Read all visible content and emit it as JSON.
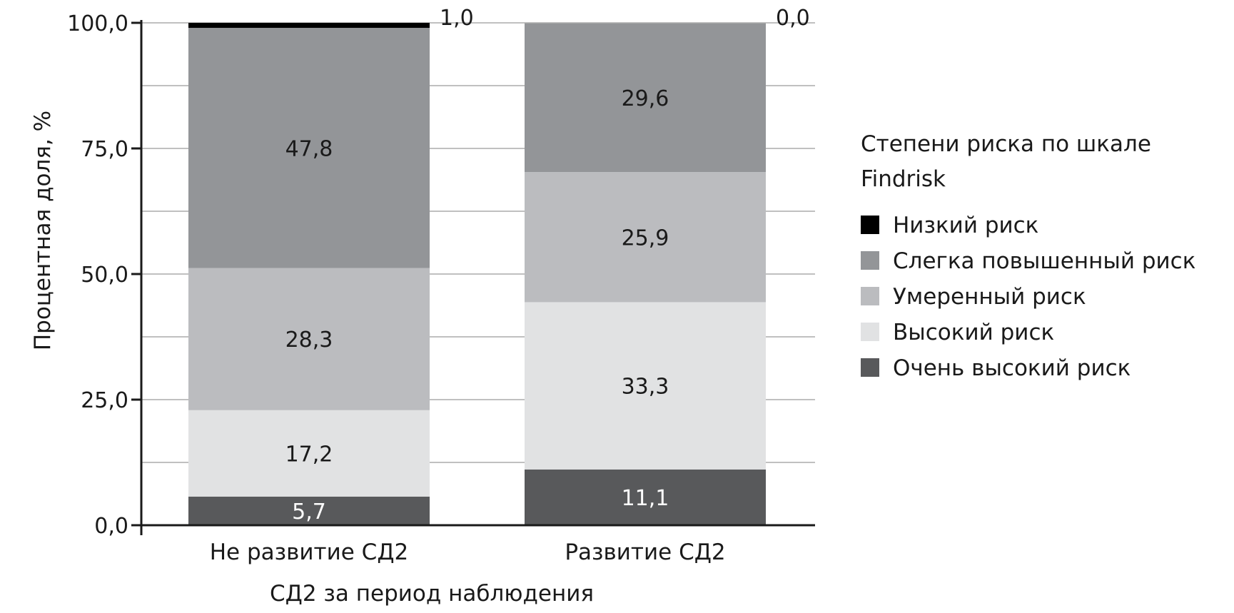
{
  "chart_data": {
    "type": "bar",
    "stacked": true,
    "categories": [
      "Не  развитие СД2",
      "Развитие СД2"
    ],
    "xlabel": "СД2 за период наблюдения",
    "ylabel": "Процентная доля, %",
    "ylim": [
      0,
      100
    ],
    "yticks": [
      "0,0",
      "25,0",
      "50,0",
      "75,0",
      "100,0"
    ],
    "grid": true,
    "legend": {
      "title_lines": [
        "Степени риска по шкале",
        "Findrisk"
      ],
      "placement": "right"
    },
    "series": [
      {
        "name": "Очень высокий риск",
        "color": "#58595b",
        "text_color": "#ffffff",
        "values": [
          5.7,
          11.1
        ],
        "labels": [
          "5,7",
          "11,1"
        ]
      },
      {
        "name": "Высокий риск",
        "color": "#e1e2e3",
        "text_color": "#1a1a1a",
        "values": [
          17.2,
          33.3
        ],
        "labels": [
          "17,2",
          "33,3"
        ]
      },
      {
        "name": "Умеренный риск",
        "color": "#bbbcbf",
        "text_color": "#1a1a1a",
        "values": [
          28.3,
          25.9
        ],
        "labels": [
          "28,3",
          "25,9"
        ]
      },
      {
        "name": "Слегка повышенный риск",
        "color": "#939598",
        "text_color": "#1a1a1a",
        "values": [
          47.8,
          29.6
        ],
        "labels": [
          "47,8",
          "29,6"
        ]
      },
      {
        "name": "Низкий риск",
        "color": "#000000",
        "text_color": "#1a1a1a",
        "values": [
          1.0,
          0.0
        ],
        "labels": [
          "1,0",
          "0,0"
        ]
      }
    ]
  }
}
